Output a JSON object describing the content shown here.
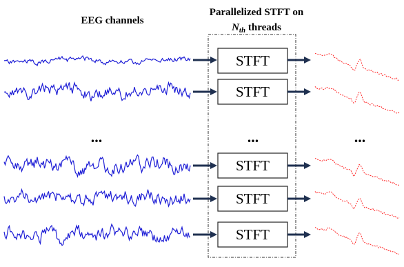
{
  "titles": {
    "eeg": "EEG channels",
    "parallel_line1": "Parallelized STFT on",
    "parallel_n": "N",
    "parallel_sub": "th",
    "parallel_rest": " threads"
  },
  "stft_label": "STFT",
  "ellipsis": "...",
  "colors": {
    "eeg": "#1f1fd6",
    "spectrum": "#ff2a2a",
    "arrow": "#1f3050",
    "box_border": "#222222"
  }
}
